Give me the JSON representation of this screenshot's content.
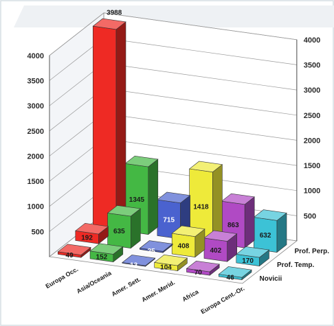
{
  "chart_data": {
    "type": "bar",
    "title": "",
    "categories": [
      "Europa Occ.",
      "Asia/Oceania",
      "Amer. Sett.",
      "Amer. Merid.",
      "Africa",
      "Europa Cent.-Or."
    ],
    "series": [
      {
        "name": "Prof. Perp.",
        "values": [
          3988,
          1345,
          715,
          1418,
          863,
          632
        ]
      },
      {
        "name": "Prof. Temp.",
        "values": [
          192,
          635,
          25,
          408,
          402,
          170
        ]
      },
      {
        "name": "Novicii",
        "values": [
          49,
          152,
          13,
          104,
          70,
          46
        ]
      }
    ],
    "value_labels": [
      [
        "3988",
        "1345",
        "715",
        "1418",
        "863",
        "632"
      ],
      [
        "192",
        "635",
        "25",
        "408",
        "402",
        "170"
      ],
      [
        "49",
        "152",
        "13",
        "104",
        "70",
        "46"
      ]
    ],
    "left_ticks": [
      "500",
      "1000",
      "1500",
      "2000",
      "2500",
      "3000",
      "3500",
      "4000"
    ],
    "right_ticks": [
      "500",
      "1000",
      "1500",
      "2000",
      "2500",
      "3000",
      "3500",
      "4000"
    ],
    "ylim": [
      0,
      4000
    ],
    "grid": true,
    "colors": [
      "#ee2a24",
      "#44b844",
      "#4a62cf",
      "#eeea3a",
      "#b04ac4",
      "#3cc2d6"
    ]
  }
}
